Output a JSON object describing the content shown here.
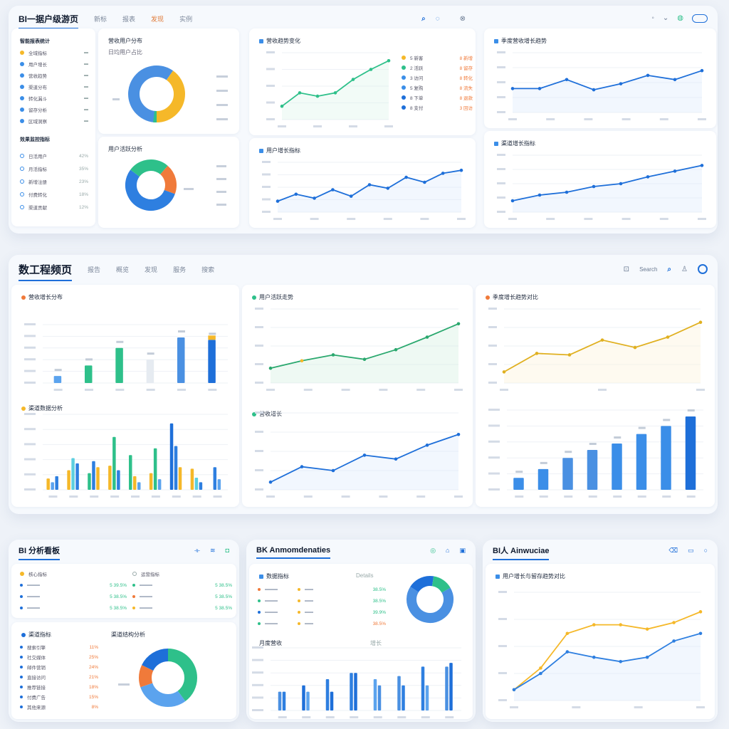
{
  "top": {
    "title": "BI一据户级游页",
    "tabs": [
      "新标",
      "报表",
      "发现",
      "实例"
    ],
    "icons": [
      "search-icon",
      "refresh-icon",
      "bell-icon",
      "user-icon",
      "settings-icon"
    ],
    "sidebar": {
      "title": "智能报表统计",
      "items": [
        {
          "label": "全域指标",
          "color": "#f5b829"
        },
        {
          "label": "用户增长",
          "color": "#3b8ee8"
        },
        {
          "label": "营收趋势",
          "color": "#3b8ee8"
        },
        {
          "label": "渠道分布",
          "color": "#3b8ee8"
        },
        {
          "label": "转化漏斗",
          "color": "#3b8ee8"
        },
        {
          "label": "留存分析",
          "color": "#3b8ee8"
        },
        {
          "label": "区域洞察",
          "color": "#3b8ee8"
        }
      ],
      "section": "效果监控指标",
      "items2": [
        {
          "label": "日活用户",
          "value": "42%"
        },
        {
          "label": "月活指标",
          "value": "35%"
        },
        {
          "label": "新增注册",
          "value": "23%"
        },
        {
          "label": "付费转化",
          "value": "18%"
        },
        {
          "label": "渠道贡献",
          "value": "12%"
        }
      ]
    },
    "donut1": {
      "title": "营收用户分布",
      "subtitle": "日均用户占比"
    },
    "donut2": {
      "title": "用户活跃分析"
    },
    "line1": {
      "title": "营收趋势变化",
      "legend": [
        {
          "label": "5 新客",
          "color": "#f5b829",
          "pct": "8 新增"
        },
        {
          "label": "2 活跃",
          "color": "#2ec08a",
          "pct": "8 留存"
        },
        {
          "label": "3 访问",
          "color": "#3b8ee8",
          "pct": "8 转化"
        },
        {
          "label": "5 复购",
          "color": "#3b8ee8",
          "pct": "8 流失"
        },
        {
          "label": "8 下单",
          "color": "#1e6fd9",
          "pct": "8 退款"
        },
        {
          "label": "8 支付",
          "color": "#1e6fd9",
          "pct": "3 回访"
        }
      ]
    },
    "line2": {
      "title": "用户增长指标"
    },
    "line3": {
      "title": "季度营收增长趋势"
    },
    "line4": {
      "title": "渠道增长指标"
    }
  },
  "mid": {
    "title": "数工程频页",
    "tabs": [
      "报告",
      "概览",
      "发现",
      "服务",
      "搜索"
    ],
    "icons": [
      "info-icon",
      "search-icon",
      "user-icon",
      "settings-icon"
    ],
    "hint": "Search",
    "bar1": {
      "title": "营收增长分布"
    },
    "bar2": {
      "title": "渠道数据分析"
    },
    "area1": {
      "title": "用户活跃走势"
    },
    "line5": {
      "title": "营收增长"
    },
    "area2": {
      "title": "季度增长趋势对比"
    },
    "bar3": {
      "title": "月度指标"
    }
  },
  "bottom": {
    "p1": {
      "title": "BI 分析看板",
      "list1Title": "核心指标",
      "list2Title": "运营指标",
      "values": [
        "5 39.5%",
        "5 38.5%",
        "5 38.5%"
      ],
      "values2": [
        "5 38.5%",
        "5 38.5%",
        "5 38.5%"
      ],
      "list3Title": "渠道指标",
      "donutTitle": "渠道结构分析",
      "list3": [
        {
          "label": "搜索引擎",
          "v": "11%"
        },
        {
          "label": "社交媒体",
          "v": "25%"
        },
        {
          "label": "邮件营销",
          "v": "24%"
        },
        {
          "label": "直接访问",
          "v": "21%"
        },
        {
          "label": "推荐链接",
          "v": "18%"
        },
        {
          "label": "付费广告",
          "v": "15%"
        },
        {
          "label": "其他来源",
          "v": "8%"
        }
      ]
    },
    "p2": {
      "title": "BK Anmomdenaties",
      "list1Title": "数据指标",
      "hint": "Details",
      "rows": [
        "38.5%",
        "38.5%",
        "39.9%",
        "38.5%"
      ],
      "barsTitle": "月度营收",
      "barsTitle2": "增长"
    },
    "p3": {
      "title": "BI人 Ainwuciae",
      "subtitle": "用户增长与留存趋势对比"
    }
  }
}
